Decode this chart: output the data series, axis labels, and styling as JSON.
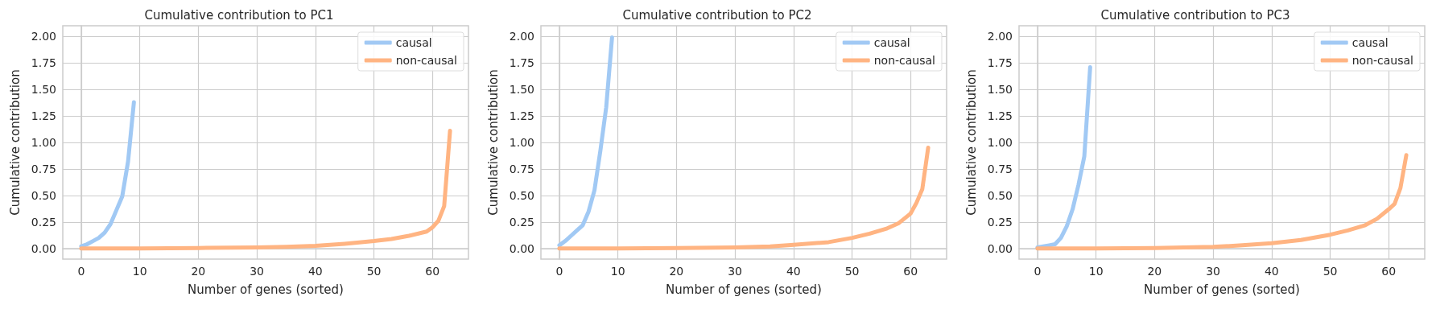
{
  "chart_data": [
    {
      "type": "line",
      "title": "Cumulative contribution to PC1",
      "xlabel": "Number of genes (sorted)",
      "ylabel": "Cumulative contribution",
      "xlim": [
        -3.15,
        66.15
      ],
      "xticks": [
        0,
        10,
        20,
        30,
        40,
        50,
        60
      ],
      "ylim": [
        -0.1,
        2.1
      ],
      "yticks": [
        {
          "value": 0,
          "label": "0.00"
        },
        {
          "value": 0.25,
          "label": "0.25"
        },
        {
          "value": 0.5,
          "label": "0.50"
        },
        {
          "value": 0.75,
          "label": "0.75"
        },
        {
          "value": 1,
          "label": "1.00"
        },
        {
          "value": 1.25,
          "label": "1.25"
        },
        {
          "value": 1.5,
          "label": "1.50"
        },
        {
          "value": 1.75,
          "label": "1.75"
        },
        {
          "value": 2,
          "label": "2.00"
        }
      ],
      "grid": true,
      "legend": "top right",
      "marker": "none",
      "line_style": "solid",
      "series": [
        {
          "name": "causal",
          "color": "#a1c9f4",
          "x": [
            0,
            1,
            2,
            3,
            4,
            5,
            6,
            7,
            8,
            9
          ],
          "values": [
            0.02,
            0.04,
            0.07,
            0.1,
            0.15,
            0.23,
            0.36,
            0.49,
            0.82,
            1.38
          ]
        },
        {
          "name": "non-causal",
          "color": "#ffb482",
          "x": [
            0,
            10,
            20,
            30,
            35,
            40,
            45,
            50,
            53,
            56,
            59,
            60,
            61,
            62,
            63
          ],
          "values": [
            0,
            0,
            0.005,
            0.01,
            0.015,
            0.025,
            0.045,
            0.07,
            0.09,
            0.12,
            0.16,
            0.2,
            0.26,
            0.4,
            1.11
          ]
        }
      ]
    },
    {
      "type": "line",
      "title": "Cumulative contribution to PC2",
      "xlabel": "Number of genes (sorted)",
      "ylabel": "Cumulative contribution",
      "xlim": [
        -3.15,
        66.15
      ],
      "xticks": [
        0,
        10,
        20,
        30,
        40,
        50,
        60
      ],
      "ylim": [
        -0.1,
        2.1
      ],
      "yticks": [
        {
          "value": 0,
          "label": "0.00"
        },
        {
          "value": 0.25,
          "label": "0.25"
        },
        {
          "value": 0.5,
          "label": "0.50"
        },
        {
          "value": 0.75,
          "label": "0.75"
        },
        {
          "value": 1,
          "label": "1.00"
        },
        {
          "value": 1.25,
          "label": "1.25"
        },
        {
          "value": 1.5,
          "label": "1.50"
        },
        {
          "value": 1.75,
          "label": "1.75"
        },
        {
          "value": 2,
          "label": "2.00"
        }
      ],
      "grid": true,
      "legend": "top right",
      "marker": "none",
      "line_style": "solid",
      "series": [
        {
          "name": "causal",
          "color": "#a1c9f4",
          "x": [
            0,
            1,
            2,
            3,
            4,
            5,
            6,
            7,
            8,
            9
          ],
          "values": [
            0.03,
            0.07,
            0.12,
            0.17,
            0.22,
            0.35,
            0.55,
            0.92,
            1.33,
            1.99
          ]
        },
        {
          "name": "non-causal",
          "color": "#ffb482",
          "x": [
            0,
            10,
            20,
            30,
            36,
            40,
            46,
            50,
            53,
            56,
            58,
            60,
            61,
            62,
            63
          ],
          "values": [
            0,
            0,
            0.005,
            0.01,
            0.02,
            0.035,
            0.06,
            0.1,
            0.14,
            0.19,
            0.24,
            0.33,
            0.43,
            0.56,
            0.95
          ]
        }
      ]
    },
    {
      "type": "line",
      "title": "Cumulative contribution to PC3",
      "xlabel": "Number of genes (sorted)",
      "ylabel": "Cumulative contribution",
      "xlim": [
        -3.15,
        66.15
      ],
      "xticks": [
        0,
        10,
        20,
        30,
        40,
        50,
        60
      ],
      "ylim": [
        -0.1,
        2.1
      ],
      "yticks": [
        {
          "value": 0,
          "label": "0.00"
        },
        {
          "value": 0.25,
          "label": "0.25"
        },
        {
          "value": 0.5,
          "label": "0.50"
        },
        {
          "value": 0.75,
          "label": "0.75"
        },
        {
          "value": 1,
          "label": "1.00"
        },
        {
          "value": 1.25,
          "label": "1.25"
        },
        {
          "value": 1.5,
          "label": "1.50"
        },
        {
          "value": 1.75,
          "label": "1.75"
        },
        {
          "value": 2,
          "label": "2.00"
        }
      ],
      "grid": true,
      "legend": "top right",
      "marker": "none",
      "line_style": "solid",
      "series": [
        {
          "name": "causal",
          "color": "#a1c9f4",
          "x": [
            0,
            1,
            2,
            3,
            4,
            5,
            6,
            7,
            8,
            9
          ],
          "values": [
            0.01,
            0.02,
            0.03,
            0.04,
            0.1,
            0.21,
            0.37,
            0.6,
            0.87,
            1.71
          ]
        },
        {
          "name": "non-causal",
          "color": "#ffb482",
          "x": [
            0,
            10,
            20,
            30,
            35,
            40,
            45,
            50,
            53,
            56,
            58,
            60,
            61,
            62,
            63
          ],
          "values": [
            0,
            0,
            0.005,
            0.015,
            0.03,
            0.05,
            0.08,
            0.13,
            0.17,
            0.22,
            0.28,
            0.37,
            0.42,
            0.57,
            0.88
          ]
        }
      ]
    }
  ]
}
